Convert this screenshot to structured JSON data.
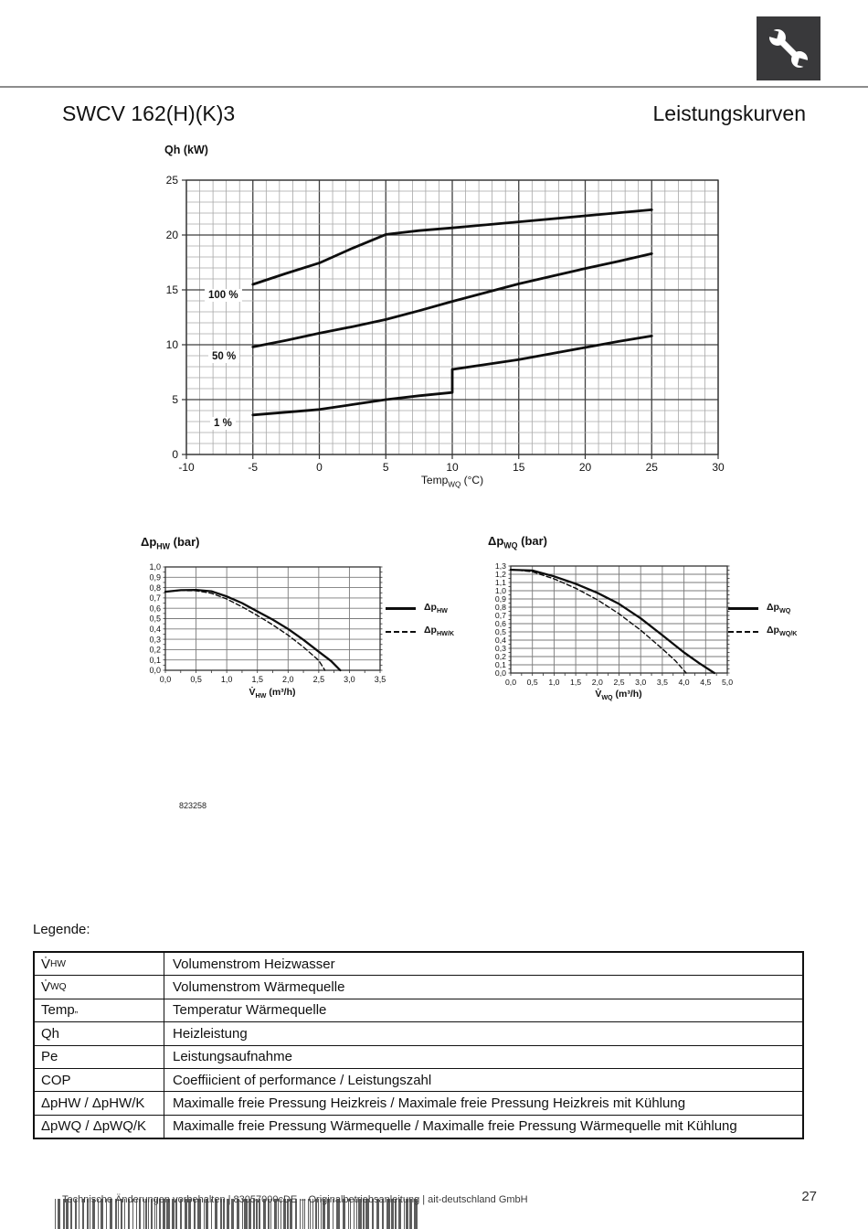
{
  "page": {
    "title_left": "SWCV 162(H)(K)3",
    "title_right": "Leistungskurven",
    "figure_number": "823258",
    "legend_heading": "Legende:",
    "header_icon": "wrench-icon"
  },
  "footer": {
    "text": "Technische Änderungen vorbehalten | 83057000cDE – Originalbetriebsanleitung | ait-deutschland GmbH",
    "page_number": "27"
  },
  "legend_table": {
    "rows": [
      {
        "pre": "V̇",
        "sub": "HW",
        "desc": "Volumenstrom Heizwasser"
      },
      {
        "pre": "V̇",
        "sub": "WQ",
        "desc": "Volumenstrom Wärmequelle"
      },
      {
        "pre": "Temp",
        "sub": "„",
        "desc": "Temperatur Wärmequelle"
      },
      {
        "pre": "Qh",
        "sub": "",
        "desc": "Heizleistung"
      },
      {
        "pre": "Pe",
        "sub": "",
        "desc": "Leistungsaufnahme"
      },
      {
        "pre": "COP",
        "sub": "",
        "desc": "Coeffiicient of performance / Leistungszahl"
      },
      {
        "pre": "ΔpHW / ΔpHW/K",
        "sub": "",
        "desc": "Maximalle freie Pressung Heizkreis / Maximale freie Pressung Heizkreis mit Kühlung"
      },
      {
        "pre": "ΔpWQ / ΔpWQ/K",
        "sub": "",
        "desc": "Maximalle freie Pressung Wärmequelle / Maximalle freie Pressung Wärmequelle mit Kühlung"
      }
    ]
  },
  "chart_data": [
    {
      "id": "main",
      "type": "line",
      "ylabel": "Qh (kW)",
      "xlabel_pre": "Temp",
      "xlabel_sub": "WQ",
      "xlabel_post": " (°C)",
      "xlim": [
        -10,
        30
      ],
      "ylim": [
        0,
        25
      ],
      "grid": {
        "x_minor": 1,
        "x_major": 5,
        "y_minor": 1,
        "y_major": 5
      },
      "x_ticks": [
        {
          "v": -10,
          "l": "-10"
        },
        {
          "v": -5,
          "l": "-5"
        },
        {
          "v": 0,
          "l": "0"
        },
        {
          "v": 5,
          "l": "5"
        },
        {
          "v": 10,
          "l": "10"
        },
        {
          "v": 15,
          "l": "15"
        },
        {
          "v": 20,
          "l": "20"
        },
        {
          "v": 25,
          "l": "25"
        },
        {
          "v": 30,
          "l": "30"
        }
      ],
      "y_ticks": [
        {
          "v": 0,
          "l": "0"
        },
        {
          "v": 5,
          "l": "5"
        },
        {
          "v": 10,
          "l": "10"
        },
        {
          "v": 15,
          "l": "15"
        },
        {
          "v": 20,
          "l": "20"
        },
        {
          "v": 25,
          "l": "25"
        }
      ],
      "series": [
        {
          "name": "100 %",
          "style": "solid",
          "points": [
            [
              -5,
              15.5
            ],
            [
              -2.5,
              16.5
            ],
            [
              0,
              17.45
            ],
            [
              2.5,
              18.8
            ],
            [
              5,
              20.05
            ],
            [
              7.5,
              20.4
            ],
            [
              10,
              20.65
            ],
            [
              15,
              21.2
            ],
            [
              20,
              21.75
            ],
            [
              25,
              22.3
            ]
          ]
        },
        {
          "name": "50 %",
          "style": "solid",
          "points": [
            [
              -5,
              9.8
            ],
            [
              -2.5,
              10.4
            ],
            [
              0,
              11.05
            ],
            [
              2.5,
              11.65
            ],
            [
              5,
              12.3
            ],
            [
              7.5,
              13.1
            ],
            [
              10,
              13.95
            ],
            [
              12.5,
              14.75
            ],
            [
              15,
              15.55
            ],
            [
              17.5,
              16.25
            ],
            [
              20,
              16.95
            ],
            [
              22.5,
              17.6
            ],
            [
              25,
              18.3
            ]
          ]
        },
        {
          "name": "1 %",
          "style": "solid",
          "points": [
            [
              -5,
              3.6
            ],
            [
              -2.5,
              3.85
            ],
            [
              0,
              4.1
            ],
            [
              2.5,
              4.55
            ],
            [
              5,
              5.0
            ],
            [
              7.5,
              5.35
            ],
            [
              10,
              5.65
            ],
            [
              10,
              7.75
            ],
            [
              12.5,
              8.2
            ],
            [
              15,
              8.65
            ],
            [
              17.5,
              9.2
            ],
            [
              20,
              9.75
            ],
            [
              22.5,
              10.3
            ],
            [
              25,
              10.8
            ]
          ]
        }
      ]
    },
    {
      "id": "hw",
      "type": "line",
      "title_pre": "Δp",
      "title_sub": "HW",
      "title_post": " (bar)",
      "xlabel_pre": "V̇",
      "xlabel_sub": "HW",
      "xlabel_post": "  (m³/h)",
      "xlim": [
        0,
        3.5
      ],
      "ylim": [
        0,
        1.0
      ],
      "grid": {
        "x_major": 0.5,
        "y_major": 0.1
      },
      "tick_minor": {
        "x": 0.25,
        "y": 0.05
      },
      "x_ticks": [
        {
          "v": 0,
          "l": "0,0"
        },
        {
          "v": 0.5,
          "l": "0,5"
        },
        {
          "v": 1,
          "l": "1,0"
        },
        {
          "v": 1.5,
          "l": "1,5"
        },
        {
          "v": 2,
          "l": "2,0"
        },
        {
          "v": 2.5,
          "l": "2,5"
        },
        {
          "v": 3,
          "l": "3,0"
        },
        {
          "v": 3.5,
          "l": "3,5"
        }
      ],
      "y_ticks": [
        {
          "v": 0,
          "l": "0,0"
        },
        {
          "v": 0.1,
          "l": "0,1"
        },
        {
          "v": 0.2,
          "l": "0,2"
        },
        {
          "v": 0.3,
          "l": "0,3"
        },
        {
          "v": 0.4,
          "l": "0,4"
        },
        {
          "v": 0.5,
          "l": "0,5"
        },
        {
          "v": 0.6,
          "l": "0,6"
        },
        {
          "v": 0.7,
          "l": "0,7"
        },
        {
          "v": 0.8,
          "l": "0,8"
        },
        {
          "v": 0.9,
          "l": "0,9"
        },
        {
          "v": 1.0,
          "l": "1,0"
        }
      ],
      "series": [
        {
          "name_pre": "Δp",
          "name_sub": "HW",
          "style": "solid",
          "points": [
            [
              0,
              0.76
            ],
            [
              0.25,
              0.775
            ],
            [
              0.5,
              0.778
            ],
            [
              0.75,
              0.765
            ],
            [
              1.0,
              0.715
            ],
            [
              1.25,
              0.65
            ],
            [
              1.5,
              0.57
            ],
            [
              1.75,
              0.49
            ],
            [
              2.0,
              0.4
            ],
            [
              2.25,
              0.295
            ],
            [
              2.5,
              0.18
            ],
            [
              2.7,
              0.09
            ],
            [
              2.85,
              0
            ]
          ]
        },
        {
          "name_pre": "Δp",
          "name_sub": "HW/K",
          "style": "dashed",
          "points": [
            [
              0,
              0.76
            ],
            [
              0.25,
              0.772
            ],
            [
              0.5,
              0.77
            ],
            [
              0.75,
              0.745
            ],
            [
              1.0,
              0.69
            ],
            [
              1.25,
              0.615
            ],
            [
              1.5,
              0.53
            ],
            [
              1.75,
              0.44
            ],
            [
              2.0,
              0.34
            ],
            [
              2.25,
              0.225
            ],
            [
              2.5,
              0.095
            ],
            [
              2.6,
              0
            ]
          ]
        }
      ]
    },
    {
      "id": "wq",
      "type": "line",
      "title_pre": "Δp",
      "title_sub": "WQ",
      "title_post": " (bar)",
      "xlabel_pre": "V̇",
      "xlabel_sub": "WQ",
      "xlabel_post": "  (m³/h)",
      "xlim": [
        0,
        5.0
      ],
      "ylim": [
        0,
        1.3
      ],
      "grid": {
        "x_major": 0.5,
        "y_major": 0.1
      },
      "tick_minor": {
        "x": 0.25,
        "y": 0.05
      },
      "x_ticks": [
        {
          "v": 0,
          "l": "0,0"
        },
        {
          "v": 0.5,
          "l": "0,5"
        },
        {
          "v": 1,
          "l": "1,0"
        },
        {
          "v": 1.5,
          "l": "1,5"
        },
        {
          "v": 2,
          "l": "2,0"
        },
        {
          "v": 2.5,
          "l": "2,5"
        },
        {
          "v": 3,
          "l": "3,0"
        },
        {
          "v": 3.5,
          "l": "3,5"
        },
        {
          "v": 4,
          "l": "4,0"
        },
        {
          "v": 4.5,
          "l": "4,5"
        },
        {
          "v": 5,
          "l": "5,0"
        }
      ],
      "y_ticks": [
        {
          "v": 0,
          "l": "0,0"
        },
        {
          "v": 0.1,
          "l": "0,1"
        },
        {
          "v": 0.2,
          "l": "0,2"
        },
        {
          "v": 0.3,
          "l": "0,3"
        },
        {
          "v": 0.4,
          "l": "0,4"
        },
        {
          "v": 0.5,
          "l": "0,5"
        },
        {
          "v": 0.6,
          "l": "0,6"
        },
        {
          "v": 0.7,
          "l": "0,7"
        },
        {
          "v": 0.8,
          "l": "0,8"
        },
        {
          "v": 0.9,
          "l": "0,9"
        },
        {
          "v": 1.0,
          "l": "1,0"
        },
        {
          "v": 1.1,
          "l": "1,1"
        },
        {
          "v": 1.2,
          "l": "1,2"
        },
        {
          "v": 1.3,
          "l": "1,3"
        }
      ],
      "series": [
        {
          "name_pre": "Δp",
          "name_sub": "WQ",
          "style": "solid",
          "points": [
            [
              0,
              1.255
            ],
            [
              0.5,
              1.245
            ],
            [
              1.0,
              1.175
            ],
            [
              1.5,
              1.085
            ],
            [
              2.0,
              0.975
            ],
            [
              2.5,
              0.84
            ],
            [
              3.0,
              0.665
            ],
            [
              3.5,
              0.46
            ],
            [
              4.0,
              0.25
            ],
            [
              4.35,
              0.12
            ],
            [
              4.7,
              0
            ]
          ]
        },
        {
          "name_pre": "Δp",
          "name_sub": "WQ/K",
          "style": "dashed",
          "points": [
            [
              0,
              1.26
            ],
            [
              0.5,
              1.23
            ],
            [
              1.0,
              1.145
            ],
            [
              1.5,
              1.03
            ],
            [
              2.0,
              0.89
            ],
            [
              2.5,
              0.72
            ],
            [
              3.0,
              0.52
            ],
            [
              3.5,
              0.295
            ],
            [
              3.8,
              0.15
            ],
            [
              4.05,
              0
            ]
          ]
        }
      ]
    }
  ]
}
